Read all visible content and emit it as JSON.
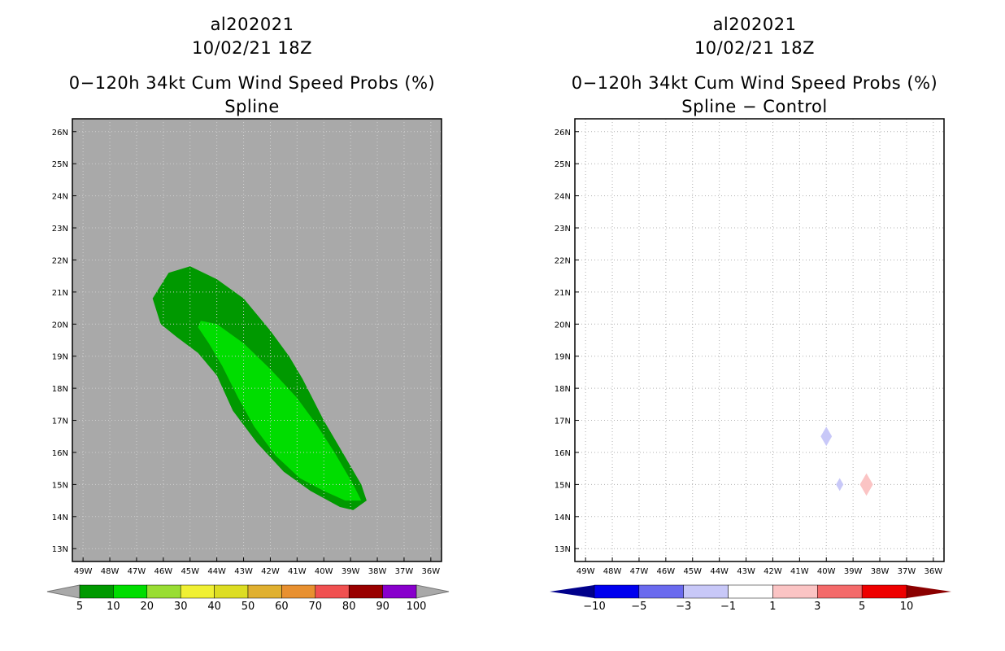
{
  "left_panel": {
    "line1": "al202021",
    "line2": "10/02/21 18Z",
    "line3": "0−120h 34kt Cum Wind Speed Probs (%)",
    "line4": "Spline"
  },
  "right_panel": {
    "line1": "al202021",
    "line2": "10/02/21 18Z",
    "line3": "0−120h 34kt Cum Wind Speed Probs (%)",
    "line4": "Spline − Control"
  },
  "colors": {
    "land_gray": "#a9a9a9",
    "green_dark": "#009900",
    "green_light": "#00dd00",
    "diff_neg": "#c8c8f8",
    "diff_pos": "#fbc4c4"
  },
  "chart_data": [
    {
      "type": "heatmap",
      "name": "Spline",
      "x_tick_labels": [
        "49W",
        "48W",
        "47W",
        "46W",
        "45W",
        "44W",
        "43W",
        "42W",
        "41W",
        "40W",
        "39W",
        "38W",
        "37W",
        "36W"
      ],
      "y_tick_labels": [
        "13N",
        "14N",
        "15N",
        "16N",
        "17N",
        "18N",
        "19N",
        "20N",
        "21N",
        "22N",
        "23N",
        "24N",
        "25N",
        "26N"
      ],
      "xlim": [
        -49.4,
        -35.6
      ],
      "ylim": [
        12.6,
        26.4
      ],
      "regions": [
        {
          "level": "5-10",
          "color": "#009900",
          "outline": [
            [
              -45.8,
              21.6
            ],
            [
              -45.0,
              21.8
            ],
            [
              -44.0,
              21.4
            ],
            [
              -43.0,
              20.8
            ],
            [
              -42.0,
              19.8
            ],
            [
              -41.3,
              19.0
            ],
            [
              -40.8,
              18.3
            ],
            [
              -40.0,
              17.0
            ],
            [
              -39.3,
              16.0
            ],
            [
              -38.6,
              15.0
            ],
            [
              -38.4,
              14.5
            ],
            [
              -38.9,
              14.2
            ],
            [
              -39.4,
              14.3
            ],
            [
              -40.5,
              14.8
            ],
            [
              -41.5,
              15.4
            ],
            [
              -42.5,
              16.3
            ],
            [
              -43.4,
              17.3
            ],
            [
              -44.0,
              18.4
            ],
            [
              -44.7,
              19.1
            ],
            [
              -45.5,
              19.6
            ],
            [
              -46.1,
              20.0
            ],
            [
              -46.4,
              20.8
            ]
          ]
        },
        {
          "level": "10-20",
          "color": "#00dd00",
          "outline": [
            [
              -44.6,
              20.1
            ],
            [
              -44.0,
              20.0
            ],
            [
              -43.0,
              19.4
            ],
            [
              -42.0,
              18.6
            ],
            [
              -41.0,
              17.7
            ],
            [
              -40.3,
              16.9
            ],
            [
              -39.6,
              16.0
            ],
            [
              -38.9,
              15.0
            ],
            [
              -38.6,
              14.5
            ],
            [
              -39.2,
              14.5
            ],
            [
              -40.0,
              14.8
            ],
            [
              -40.9,
              15.2
            ],
            [
              -41.8,
              15.9
            ],
            [
              -42.6,
              16.8
            ],
            [
              -43.2,
              17.7
            ],
            [
              -43.8,
              18.7
            ],
            [
              -44.3,
              19.4
            ],
            [
              -44.7,
              19.9
            ]
          ]
        }
      ],
      "colorbar": {
        "labels": [
          "5",
          "10",
          "20",
          "30",
          "40",
          "50",
          "60",
          "70",
          "80",
          "90",
          "100"
        ],
        "colors": [
          "#009900",
          "#00dd00",
          "#99dd33",
          "#f0f033",
          "#dddd22",
          "#e0b030",
          "#e89030",
          "#f05050",
          "#990000",
          "#8800cc"
        ]
      }
    },
    {
      "type": "heatmap",
      "name": "Spline − Control",
      "x_tick_labels": [
        "49W",
        "48W",
        "47W",
        "46W",
        "45W",
        "44W",
        "43W",
        "42W",
        "41W",
        "40W",
        "39W",
        "38W",
        "37W",
        "36W"
      ],
      "y_tick_labels": [
        "13N",
        "14N",
        "15N",
        "16N",
        "17N",
        "18N",
        "19N",
        "20N",
        "21N",
        "22N",
        "23N",
        "24N",
        "25N",
        "26N"
      ],
      "xlim": [
        -49.4,
        -35.6
      ],
      "ylim": [
        12.6,
        26.4
      ],
      "grid": true,
      "points": [
        {
          "lon": -40.0,
          "lat": 16.5,
          "value": -2,
          "size": 0.3
        },
        {
          "lon": -39.5,
          "lat": 15.0,
          "value": -2,
          "size": 0.2
        },
        {
          "lon": -38.5,
          "lat": 15.0,
          "value": 2,
          "size": 0.35
        }
      ],
      "colorbar": {
        "labels": [
          "−10",
          "−5",
          "−3",
          "−1",
          "1",
          "3",
          "5",
          "10"
        ],
        "colors": [
          "#00008b",
          "#0000ee",
          "#6a6aee",
          "#c8c8f8",
          "#ffffff",
          "#fbc4c4",
          "#f46a6a",
          "#ee0000",
          "#8b0000"
        ]
      }
    }
  ]
}
